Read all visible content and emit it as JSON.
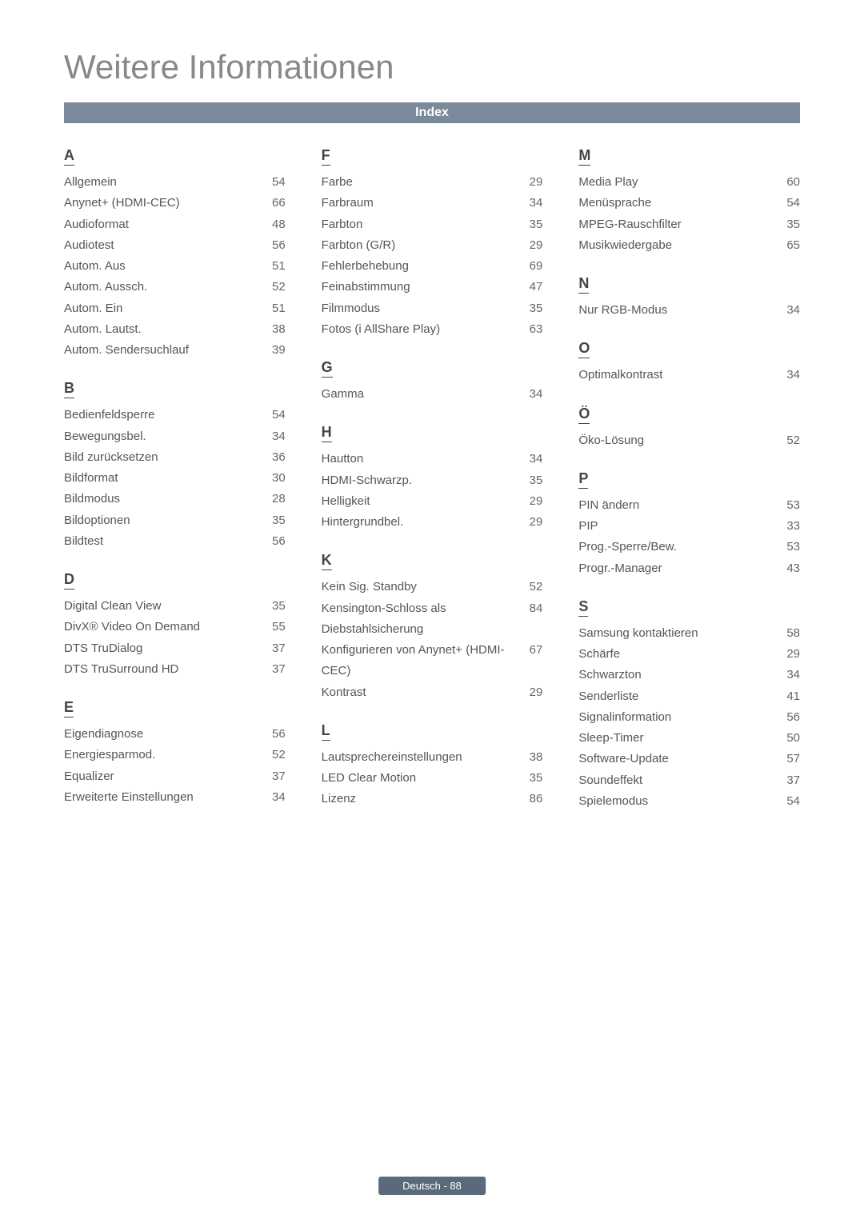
{
  "title": "Weitere Informationen",
  "index_label": "Index",
  "footer": "Deutsch - 88",
  "columns": [
    {
      "sections": [
        {
          "letter": "A",
          "entries": [
            {
              "term": "Allgemein",
              "page": "54"
            },
            {
              "term": "Anynet+ (HDMI-CEC)",
              "page": "66"
            },
            {
              "term": "Audioformat",
              "page": "48"
            },
            {
              "term": "Audiotest",
              "page": "56"
            },
            {
              "term": "Autom. Aus",
              "page": "51"
            },
            {
              "term": "Autom. Aussch.",
              "page": "52"
            },
            {
              "term": "Autom. Ein",
              "page": "51"
            },
            {
              "term": "Autom. Lautst.",
              "page": "38"
            },
            {
              "term": "Autom. Sendersuchlauf",
              "page": "39"
            }
          ]
        },
        {
          "letter": "B",
          "entries": [
            {
              "term": "Bedienfeldsperre",
              "page": "54"
            },
            {
              "term": "Bewegungsbel.",
              "page": "34"
            },
            {
              "term": "Bild zurücksetzen",
              "page": "36"
            },
            {
              "term": "Bildformat",
              "page": "30"
            },
            {
              "term": "Bildmodus",
              "page": "28"
            },
            {
              "term": "Bildoptionen",
              "page": "35"
            },
            {
              "term": "Bildtest",
              "page": "56"
            }
          ]
        },
        {
          "letter": "D",
          "entries": [
            {
              "term": "Digital Clean View",
              "page": "35"
            },
            {
              "term": "DivX® Video On Demand",
              "page": "55"
            },
            {
              "term": "DTS TruDialog",
              "page": "37"
            },
            {
              "term": "DTS TruSurround HD",
              "page": "37"
            }
          ]
        },
        {
          "letter": "E",
          "entries": [
            {
              "term": "Eigendiagnose",
              "page": "56"
            },
            {
              "term": "Energiesparmod.",
              "page": "52"
            },
            {
              "term": "Equalizer",
              "page": "37"
            },
            {
              "term": "Erweiterte Einstellungen",
              "page": "34"
            }
          ]
        }
      ]
    },
    {
      "sections": [
        {
          "letter": "F",
          "entries": [
            {
              "term": "Farbe",
              "page": "29"
            },
            {
              "term": "Farbraum",
              "page": "34"
            },
            {
              "term": "Farbton",
              "page": "35"
            },
            {
              "term": "Farbton (G/R)",
              "page": "29"
            },
            {
              "term": "Fehlerbehebung",
              "page": "69"
            },
            {
              "term": "Feinabstimmung",
              "page": "47"
            },
            {
              "term": "Filmmodus",
              "page": "35"
            },
            {
              "term": "Fotos (i AllShare Play)",
              "page": "63"
            }
          ]
        },
        {
          "letter": "G",
          "entries": [
            {
              "term": "Gamma",
              "page": "34"
            }
          ]
        },
        {
          "letter": "H",
          "entries": [
            {
              "term": "Hautton",
              "page": "34"
            },
            {
              "term": "HDMI-Schwarzp.",
              "page": "35"
            },
            {
              "term": "Helligkeit",
              "page": "29"
            },
            {
              "term": "Hintergrundbel.",
              "page": "29"
            }
          ]
        },
        {
          "letter": "K",
          "entries": [
            {
              "term": "Kein Sig. Standby",
              "page": "52"
            },
            {
              "term": "Kensington-Schloss als Diebstahlsicherung",
              "page": "84"
            },
            {
              "term": "Konfigurieren von Anynet+ (HDMI-CEC)",
              "page": "67"
            },
            {
              "term": "Kontrast",
              "page": "29"
            }
          ]
        },
        {
          "letter": "L",
          "entries": [
            {
              "term": "Lautsprechereinstellungen",
              "page": "38"
            },
            {
              "term": "LED Clear Motion",
              "page": "35"
            },
            {
              "term": "Lizenz",
              "page": "86"
            }
          ]
        }
      ]
    },
    {
      "sections": [
        {
          "letter": "M",
          "entries": [
            {
              "term": "Media Play",
              "page": "60"
            },
            {
              "term": "Menüsprache",
              "page": "54"
            },
            {
              "term": "MPEG-Rauschfilter",
              "page": "35"
            },
            {
              "term": "Musikwiedergabe",
              "page": "65"
            }
          ]
        },
        {
          "letter": "N",
          "entries": [
            {
              "term": "Nur RGB-Modus",
              "page": "34"
            }
          ]
        },
        {
          "letter": "O",
          "entries": [
            {
              "term": "Optimalkontrast",
              "page": "34"
            }
          ]
        },
        {
          "letter": "Ö",
          "entries": [
            {
              "term": "Öko-Lösung",
              "page": "52"
            }
          ]
        },
        {
          "letter": "P",
          "entries": [
            {
              "term": "PIN ändern",
              "page": "53"
            },
            {
              "term": "PIP",
              "page": "33"
            },
            {
              "term": "Prog.-Sperre/Bew.",
              "page": "53"
            },
            {
              "term": "Progr.-Manager",
              "page": "43"
            }
          ]
        },
        {
          "letter": "S",
          "entries": [
            {
              "term": "Samsung kontaktieren",
              "page": "58"
            },
            {
              "term": "Schärfe",
              "page": "29"
            },
            {
              "term": "Schwarzton",
              "page": "34"
            },
            {
              "term": "Senderliste",
              "page": "41"
            },
            {
              "term": "Signalinformation",
              "page": "56"
            },
            {
              "term": "Sleep-Timer",
              "page": "50"
            },
            {
              "term": "Software-Update",
              "page": "57"
            },
            {
              "term": "Soundeffekt",
              "page": "37"
            },
            {
              "term": "Spielemodus",
              "page": "54"
            }
          ]
        }
      ]
    }
  ]
}
